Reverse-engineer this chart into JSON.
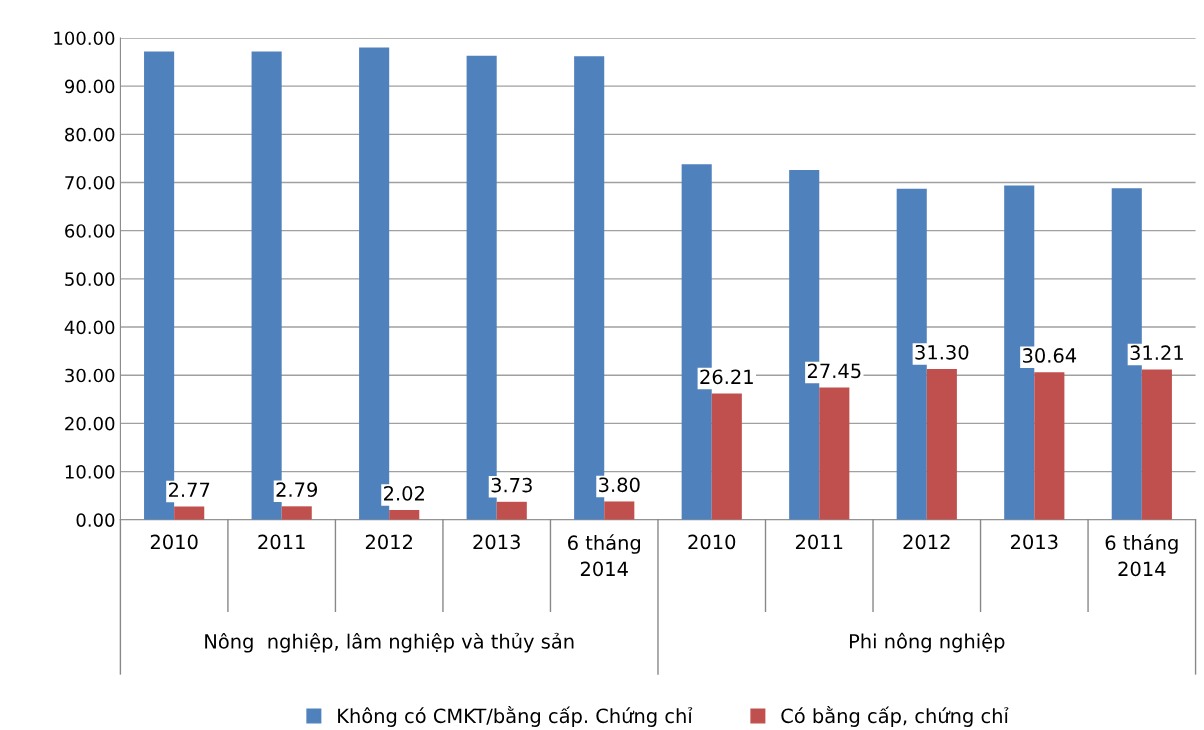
{
  "chart_data": {
    "type": "bar",
    "categories": [
      "2010",
      "2011",
      "2012",
      "2013",
      "6 tháng\n2014",
      "2010",
      "2011",
      "2012",
      "2013",
      "6 tháng\n2014"
    ],
    "series": [
      {
        "name": "Không có CMKT/bằng cấp. Chứng chỉ",
        "color": "#4f81bd",
        "values": [
          97.2,
          97.2,
          98.0,
          96.3,
          96.2,
          73.8,
          72.6,
          68.7,
          69.4,
          68.8
        ]
      },
      {
        "name": "Có bằng cấp, chứng chỉ",
        "color": "#c0504d",
        "values": [
          2.77,
          2.79,
          2.02,
          3.73,
          3.8,
          26.21,
          27.45,
          31.3,
          30.64,
          31.21
        ],
        "value_labels": [
          "2.77",
          "2.79",
          "2.02",
          "3.73",
          "3.80",
          "26.21",
          "27.45",
          "31.30",
          "30.64",
          "31.21"
        ]
      }
    ],
    "ylim": [
      0,
      100
    ],
    "yticks": [
      {
        "value": 0,
        "label": "0.00"
      },
      {
        "value": 10,
        "label": "10.00"
      },
      {
        "value": 20,
        "label": "20.00"
      },
      {
        "value": 30,
        "label": "30.00"
      },
      {
        "value": 40,
        "label": "40.00"
      },
      {
        "value": 50,
        "label": "50.00"
      },
      {
        "value": 60,
        "label": "60.00"
      },
      {
        "value": 70,
        "label": "70.00"
      },
      {
        "value": 80,
        "label": "80.00"
      },
      {
        "value": 90,
        "label": "90.00"
      },
      {
        "value": 100,
        "label": "100.00"
      }
    ],
    "grid": "y",
    "legend": "bottom",
    "annotations": [
      "Nông  nghiệp, lâm nghiệp và thủy sản",
      "Phi nông nghiệp"
    ]
  }
}
